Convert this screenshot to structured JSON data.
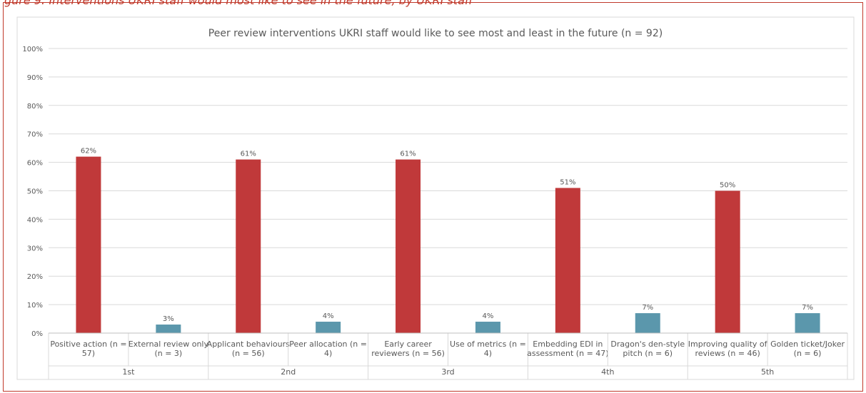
{
  "caption": "gure 9: Interventions UKRI staff would most like to see in the future, by UKRI staff",
  "colors": {
    "see_most": "#c0393a",
    "see_least": "#5b97ac",
    "grid": "#d9d9d9",
    "text": "#595959",
    "frame": "#c0392b"
  },
  "chart_data": {
    "type": "bar",
    "title": "Peer review interventions UKRI staff would like to see most and least in the future (n = 92)",
    "ylim": [
      0,
      100
    ],
    "yticks": [
      "0%",
      "10%",
      "20%",
      "30%",
      "40%",
      "50%",
      "60%",
      "70%",
      "80%",
      "90%",
      "100%"
    ],
    "grid": true,
    "groups": [
      {
        "label": "1st",
        "bars": [
          {
            "label": "Positive action (n = 57)",
            "value": 62,
            "data_label": "62%",
            "kind": "see_most"
          },
          {
            "label": "External review only (n = 3)",
            "value": 3,
            "data_label": "3%",
            "kind": "see_least"
          }
        ]
      },
      {
        "label": "2nd",
        "bars": [
          {
            "label": "Applicant behaviours (n = 56)",
            "value": 61,
            "data_label": "61%",
            "kind": "see_most"
          },
          {
            "label": "Peer allocation (n = 4)",
            "value": 4,
            "data_label": "4%",
            "kind": "see_least"
          }
        ]
      },
      {
        "label": "3rd",
        "bars": [
          {
            "label": "Early career reviewers (n = 56)",
            "value": 61,
            "data_label": "61%",
            "kind": "see_most"
          },
          {
            "label": "Use of metrics (n = 4)",
            "value": 4,
            "data_label": "4%",
            "kind": "see_least"
          }
        ]
      },
      {
        "label": "4th",
        "bars": [
          {
            "label": "Embedding EDI in assessment (n = 47)",
            "value": 51,
            "data_label": "51%",
            "kind": "see_most"
          },
          {
            "label": "Dragon's den-style pitch (n = 6)",
            "value": 7,
            "data_label": "7%",
            "kind": "see_least"
          }
        ]
      },
      {
        "label": "5th",
        "bars": [
          {
            "label": "Improving quality of reviews (n = 46)",
            "value": 50,
            "data_label": "50%",
            "kind": "see_most"
          },
          {
            "label": "Golden ticket/Joker (n = 6)",
            "value": 7,
            "data_label": "7%",
            "kind": "see_least"
          }
        ]
      }
    ]
  }
}
